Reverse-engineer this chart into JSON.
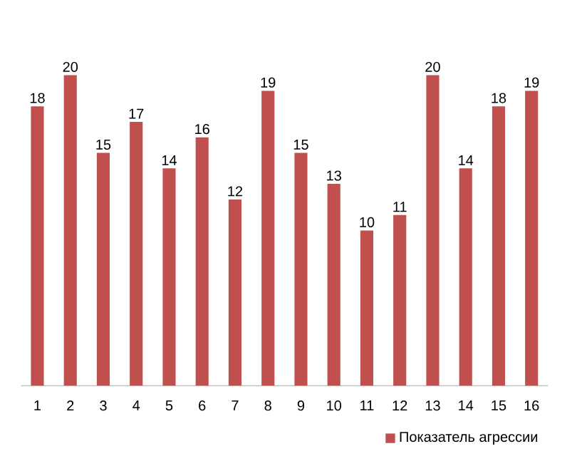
{
  "chart_data": {
    "type": "bar",
    "categories": [
      "1",
      "2",
      "3",
      "4",
      "5",
      "6",
      "7",
      "8",
      "9",
      "10",
      "11",
      "12",
      "13",
      "14",
      "15",
      "16"
    ],
    "series": [
      {
        "name": "Показатель агрессии",
        "color": "#c0504d",
        "values": [
          18,
          20,
          15,
          17,
          14,
          16,
          12,
          19,
          15,
          13,
          10,
          11,
          20,
          14,
          18,
          19
        ]
      }
    ],
    "data_labels": true,
    "legend": "bottom right"
  }
}
